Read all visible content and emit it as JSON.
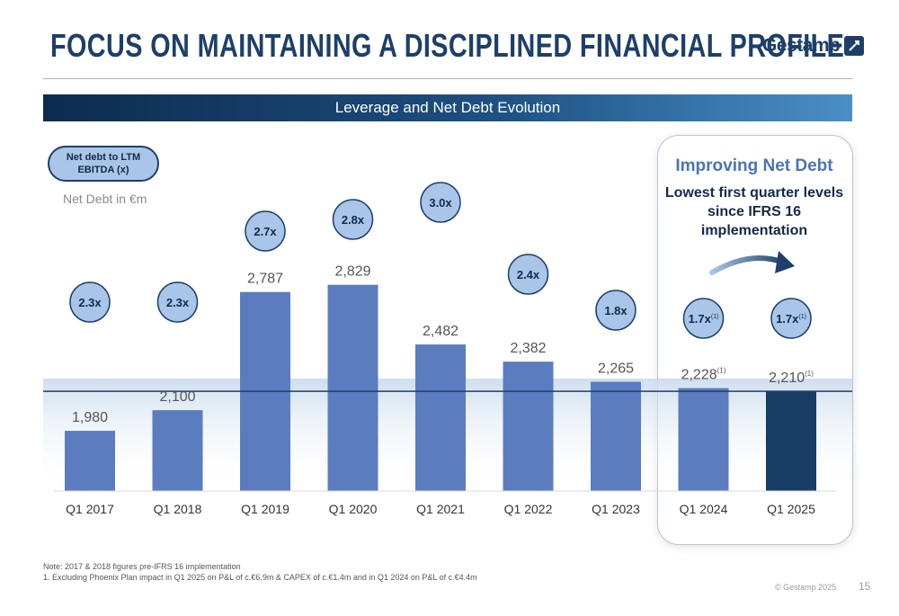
{
  "title": "FOCUS ON MAINTAINING A DISCIPLINED FINANCIAL PROFILE",
  "logo_text": "Gestamp",
  "banner": "Leverage and Net Debt Evolution",
  "legend_oval": "Net debt to LTM EBITDA (x)",
  "unit_label": "Net Debt in €m",
  "highlight": {
    "title": "Improving Net Debt",
    "subtitle": "Lowest first quarter levels since IFRS 16 implementation"
  },
  "colors": {
    "bar": "#5b7dbf",
    "bar_highlight": "#173c66",
    "circle_fill": "#a9c6e8",
    "circle_text": "#12294a",
    "title": "#1d3f6a"
  },
  "chart_data": {
    "type": "bar",
    "categories": [
      "Q1 2017",
      "Q1 2018",
      "Q1 2019",
      "Q1 2020",
      "Q1 2021",
      "Q1 2022",
      "Q1 2023",
      "Q1 2024",
      "Q1 2025"
    ],
    "values": [
      1980,
      2100,
      2787,
      2829,
      2482,
      2382,
      2265,
      2228,
      2210
    ],
    "value_labels": [
      "1,980",
      "2,100",
      "2,787",
      "2,829",
      "2,482",
      "2,382",
      "2,265",
      "2,228",
      "2,210"
    ],
    "value_footnotes": [
      "",
      "",
      "",
      "",
      "",
      "",
      "",
      "(1)",
      "(1)"
    ],
    "leverage_labels": [
      "2.3x",
      "2.3x",
      "2.7x",
      "2.8x",
      "3.0x",
      "2.4x",
      "1.8x",
      "1.7x",
      "1.7x"
    ],
    "leverage_values": [
      2.3,
      2.3,
      2.7,
      2.8,
      3.0,
      2.4,
      1.8,
      1.7,
      1.7
    ],
    "leverage_footnotes": [
      "",
      "",
      "",
      "",
      "",
      "",
      "",
      "(1)",
      "(1)"
    ],
    "highlighted_index": 8,
    "reference_line_value": 2210,
    "ylim": [
      1630,
      2890
    ]
  },
  "footnotes": {
    "note": "Note: 2017 & 2018 figures pre-IFRS 16 implementation",
    "item1": "1.    Excluding Phoenix Plan impact in Q1 2025 on P&L of c.€6.9m & CAPEX of c.€1.4m and in Q1 2024 on P&L of c.€4.4m"
  },
  "copyright": "© Gestamp 2025",
  "page_number": "15"
}
